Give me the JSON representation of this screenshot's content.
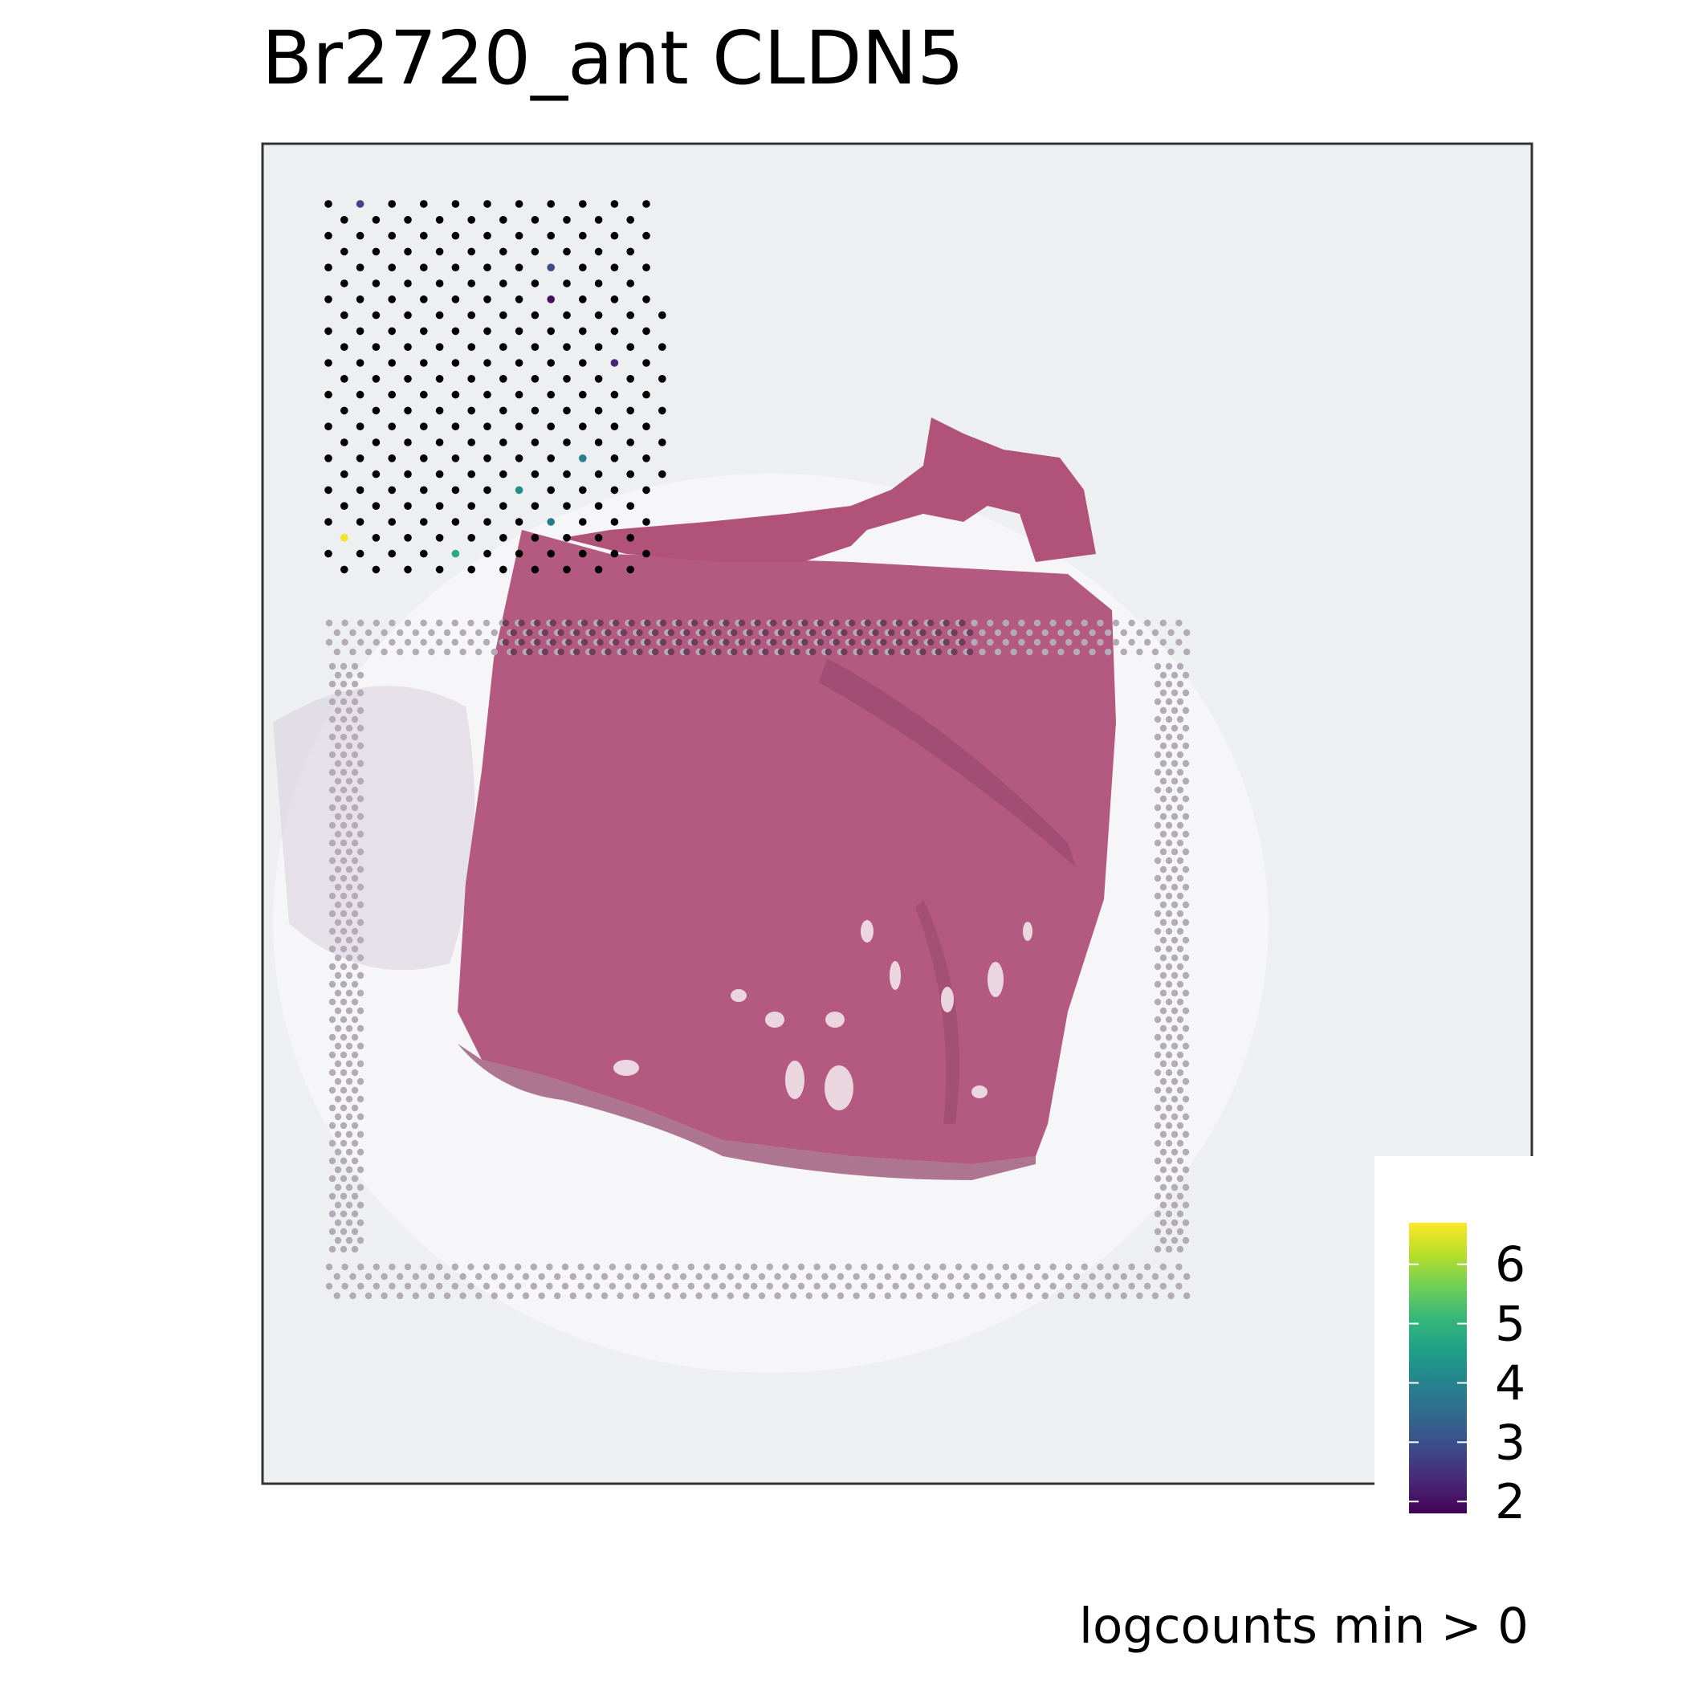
{
  "title": "Br2720_ant CLDN5",
  "caption": "logcounts min > 0",
  "colors": {
    "panel_border": "#333333",
    "slide_background": "#eeeff1",
    "tissue": "#b8587f",
    "tissue_dark": "#93456a",
    "spot_zero": "#000000",
    "fiducial": "#b3abb6"
  },
  "chart_data": {
    "type": "scatter",
    "description_kind": "spatial spot plot over tissue image",
    "legend": {
      "position": "bottom-right",
      "colormap": "viridis",
      "min": 1.8,
      "max": 6.7,
      "ticks": [
        2,
        3,
        4,
        5,
        6
      ],
      "tick_labels": [
        "2",
        "3",
        "4",
        "5",
        "6"
      ],
      "stops": [
        "#440154",
        "#482878",
        "#3e4989",
        "#31688e",
        "#26828e",
        "#1f9e89",
        "#35b779",
        "#6ece58",
        "#b5de2b",
        "#fde725"
      ]
    },
    "spot_grid": {
      "cols": 11,
      "rows": 24,
      "zero_value_color": "#000000"
    },
    "expressed_spots": [
      {
        "col": 1,
        "row": 0,
        "value": 2.8
      },
      {
        "col": 7,
        "row": 4,
        "value": 2.9
      },
      {
        "col": 7,
        "row": 6,
        "value": 2.0
      },
      {
        "col": 9,
        "row": 10,
        "value": 2.3
      },
      {
        "col": 8,
        "row": 16,
        "value": 3.9
      },
      {
        "col": 6,
        "row": 18,
        "value": 4.2
      },
      {
        "col": 7,
        "row": 20,
        "value": 3.8
      },
      {
        "col": 0,
        "row": 21,
        "value": 6.6
      },
      {
        "col": 4,
        "row": 22,
        "value": 4.8
      }
    ]
  }
}
